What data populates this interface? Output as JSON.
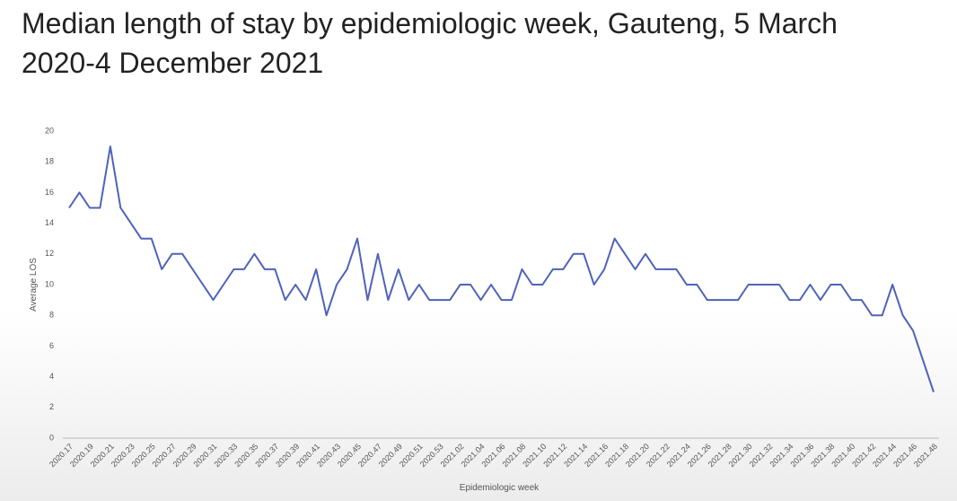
{
  "chart_data": {
    "type": "line",
    "title": "Median length of stay by epidemiologic week, Gauteng, 5 March 2020-4 December 2021",
    "y_label": "Average LOS",
    "x_label": "Epidemiologic week",
    "categories": [
      "2020.17",
      null,
      "2020.19",
      null,
      "2020.21",
      null,
      "2020.23",
      null,
      "2020.25",
      null,
      "2020.27",
      null,
      "2020.29",
      null,
      "2020.31",
      null,
      "2020.33",
      null,
      "2020.35",
      null,
      "2020.37",
      null,
      "2020.39",
      null,
      "2020.41",
      null,
      "2020.43",
      null,
      "2020.45",
      null,
      "2020.47",
      null,
      "2020.49",
      null,
      "2020.51",
      null,
      "2020.53",
      null,
      "2021.02",
      null,
      "2021.04",
      null,
      "2021.06",
      null,
      "2021.08",
      null,
      "2021.10",
      null,
      "2021.12",
      null,
      "2021.14",
      null,
      "2021.16",
      null,
      "2021.18",
      null,
      "2021.20",
      null,
      "2021.22",
      null,
      "2021.24",
      null,
      "2021.26",
      null,
      "2021.28",
      null,
      "2021.30",
      null,
      "2021.32",
      null,
      "2021.34",
      null,
      "2021.36",
      null,
      "2021.38",
      null,
      "2021.40",
      null,
      "2021.42",
      null,
      "2021.44",
      null,
      "2021.46",
      null,
      "2021.48"
    ],
    "values": [
      15,
      16,
      15,
      15,
      19,
      15,
      14,
      13,
      13,
      11,
      12,
      12,
      11,
      10,
      9,
      10,
      11,
      11,
      12,
      11,
      11,
      9,
      10,
      9,
      11,
      8,
      10,
      11,
      13,
      9,
      12,
      9,
      11,
      9,
      10,
      9,
      9,
      9,
      10,
      10,
      9,
      10,
      9,
      9,
      11,
      10,
      10,
      11,
      11,
      12,
      12,
      10,
      11,
      13,
      12,
      11,
      12,
      11,
      11,
      11,
      10,
      10,
      9,
      9,
      9,
      9,
      10,
      10,
      10,
      10,
      9,
      9,
      10,
      9,
      10,
      10,
      9,
      9,
      8,
      8,
      10,
      8,
      7,
      5,
      3
    ],
    "color": "#4f63b8",
    "ylim": [
      0,
      20
    ],
    "yticks": [
      0,
      2,
      4,
      6,
      8,
      10,
      12,
      14,
      16,
      18,
      20
    ],
    "grid": false
  }
}
